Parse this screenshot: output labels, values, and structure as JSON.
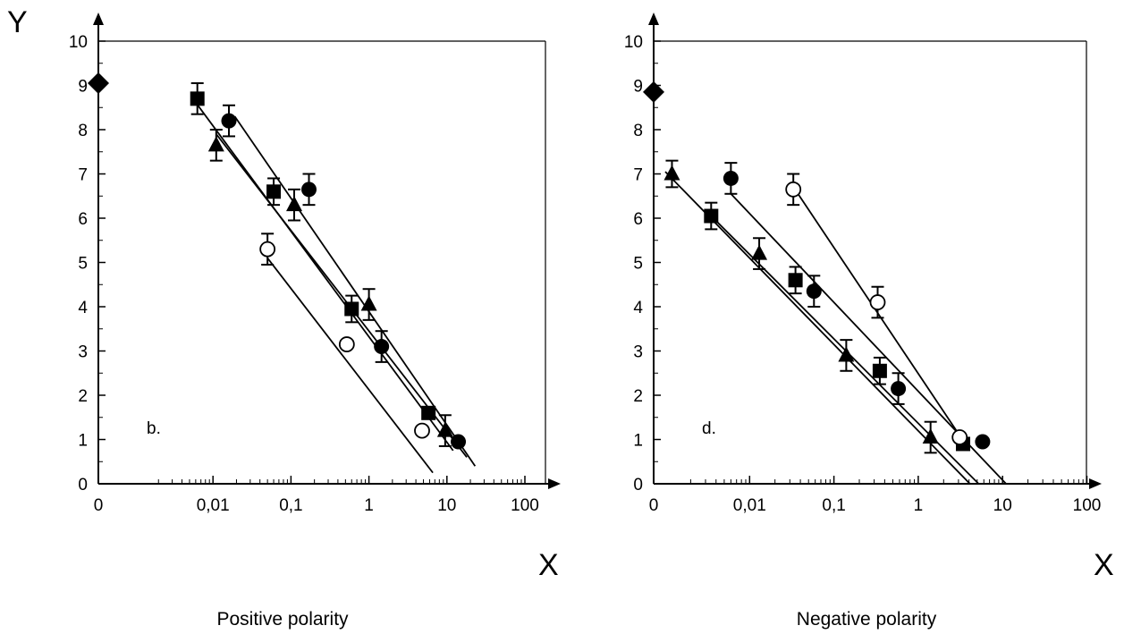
{
  "chart_data": [
    {
      "type": "scatter",
      "panel_label": "b.",
      "caption": "Positive polarity",
      "y_axis_name": "Y",
      "x_axis_name": "X",
      "x_scale": "log (with 0 at origin)",
      "xtick_labels": [
        "0",
        "0,01",
        "0,1",
        "1",
        "10",
        "100"
      ],
      "xtick_values": [
        0,
        0.01,
        0.1,
        1,
        10,
        100
      ],
      "ytick_labels": [
        "0",
        "1",
        "2",
        "3",
        "4",
        "5",
        "6",
        "7",
        "8",
        "9",
        "10"
      ],
      "ylim": [
        0,
        10
      ],
      "markers": [
        {
          "shape": "diamond",
          "x": 0,
          "y": 9.05,
          "err": 0
        },
        {
          "shape": "square",
          "x": 0.0063,
          "y": 8.7,
          "err": 0.35
        },
        {
          "shape": "square",
          "x": 0.06,
          "y": 6.6,
          "err": 0.3
        },
        {
          "shape": "square",
          "x": 0.6,
          "y": 3.95,
          "err": 0.3
        },
        {
          "shape": "square",
          "x": 5.8,
          "y": 1.6,
          "err": 0
        },
        {
          "shape": "circle-filled",
          "x": 0.016,
          "y": 8.2,
          "err": 0.35
        },
        {
          "shape": "circle-filled",
          "x": 0.17,
          "y": 6.65,
          "err": 0.35
        },
        {
          "shape": "circle-filled",
          "x": 1.45,
          "y": 3.1,
          "err": 0.35
        },
        {
          "shape": "circle-filled",
          "x": 14,
          "y": 0.95,
          "err": 0
        },
        {
          "shape": "triangle",
          "x": 0.011,
          "y": 7.65,
          "err": 0.35
        },
        {
          "shape": "triangle",
          "x": 0.11,
          "y": 6.3,
          "err": 0.35
        },
        {
          "shape": "triangle",
          "x": 1.0,
          "y": 4.05,
          "err": 0.35
        },
        {
          "shape": "triangle",
          "x": 9.5,
          "y": 1.2,
          "err": 0.35
        },
        {
          "shape": "circle-open",
          "x": 0.05,
          "y": 5.3,
          "err": 0.35
        },
        {
          "shape": "circle-open",
          "x": 0.52,
          "y": 3.15,
          "err": 0
        },
        {
          "shape": "circle-open",
          "x": 4.8,
          "y": 1.2,
          "err": 0
        }
      ],
      "fit_lines": [
        {
          "x1": 0.0058,
          "y1": 8.65,
          "x2": 12,
          "y2": 0.75
        },
        {
          "x1": 0.019,
          "y1": 8.3,
          "x2": 23,
          "y2": 0.4
        },
        {
          "x1": 0.011,
          "y1": 7.9,
          "x2": 18,
          "y2": 0.6
        },
        {
          "x1": 0.05,
          "y1": 5.1,
          "x2": 6.6,
          "y2": 0.25
        }
      ]
    },
    {
      "type": "scatter",
      "panel_label": "d.",
      "caption": "Negative polarity",
      "y_axis_name": "",
      "x_axis_name": "X",
      "x_scale": "log (with 0 at origin)",
      "xtick_labels": [
        "0",
        "0,01",
        "0,1",
        "1",
        "10",
        "100"
      ],
      "xtick_values": [
        0,
        0.01,
        0.1,
        1,
        10,
        100
      ],
      "ytick_labels": [
        "0",
        "1",
        "2",
        "3",
        "4",
        "5",
        "6",
        "7",
        "8",
        "9",
        "10"
      ],
      "ylim": [
        0,
        10
      ],
      "markers": [
        {
          "shape": "diamond",
          "x": 0,
          "y": 8.85,
          "err": 0
        },
        {
          "shape": "triangle",
          "x": 0.0012,
          "y": 7.0,
          "err": 0.3
        },
        {
          "shape": "triangle",
          "x": 0.013,
          "y": 5.2,
          "err": 0.35
        },
        {
          "shape": "triangle",
          "x": 0.14,
          "y": 2.9,
          "err": 0.35
        },
        {
          "shape": "triangle",
          "x": 1.4,
          "y": 1.05,
          "err": 0.35
        },
        {
          "shape": "square",
          "x": 0.0035,
          "y": 6.05,
          "err": 0.3
        },
        {
          "shape": "square",
          "x": 0.035,
          "y": 4.6,
          "err": 0.3
        },
        {
          "shape": "square",
          "x": 0.35,
          "y": 2.55,
          "err": 0.3
        },
        {
          "shape": "square",
          "x": 3.4,
          "y": 0.9,
          "err": 0
        },
        {
          "shape": "circle-filled",
          "x": 0.006,
          "y": 6.9,
          "err": 0.35
        },
        {
          "shape": "circle-filled",
          "x": 0.058,
          "y": 4.35,
          "err": 0.35
        },
        {
          "shape": "circle-filled",
          "x": 0.58,
          "y": 2.15,
          "err": 0.35
        },
        {
          "shape": "circle-filled",
          "x": 5.8,
          "y": 0.95,
          "err": 0
        },
        {
          "shape": "circle-open",
          "x": 0.033,
          "y": 6.65,
          "err": 0.35
        },
        {
          "shape": "circle-open",
          "x": 0.33,
          "y": 4.1,
          "err": 0.35
        },
        {
          "shape": "circle-open",
          "x": 3.1,
          "y": 1.05,
          "err": 0
        }
      ],
      "fit_lines": [
        {
          "x1": 0.001,
          "y1": 7.05,
          "x2": 4.1,
          "y2": 0.0
        },
        {
          "x1": 0.0033,
          "y1": 6.1,
          "x2": 5.2,
          "y2": 0.0
        },
        {
          "x1": 0.006,
          "y1": 6.55,
          "x2": 11,
          "y2": 0.0
        },
        {
          "x1": 0.036,
          "y1": 6.6,
          "x2": 3.2,
          "y2": 1.05
        }
      ]
    }
  ]
}
